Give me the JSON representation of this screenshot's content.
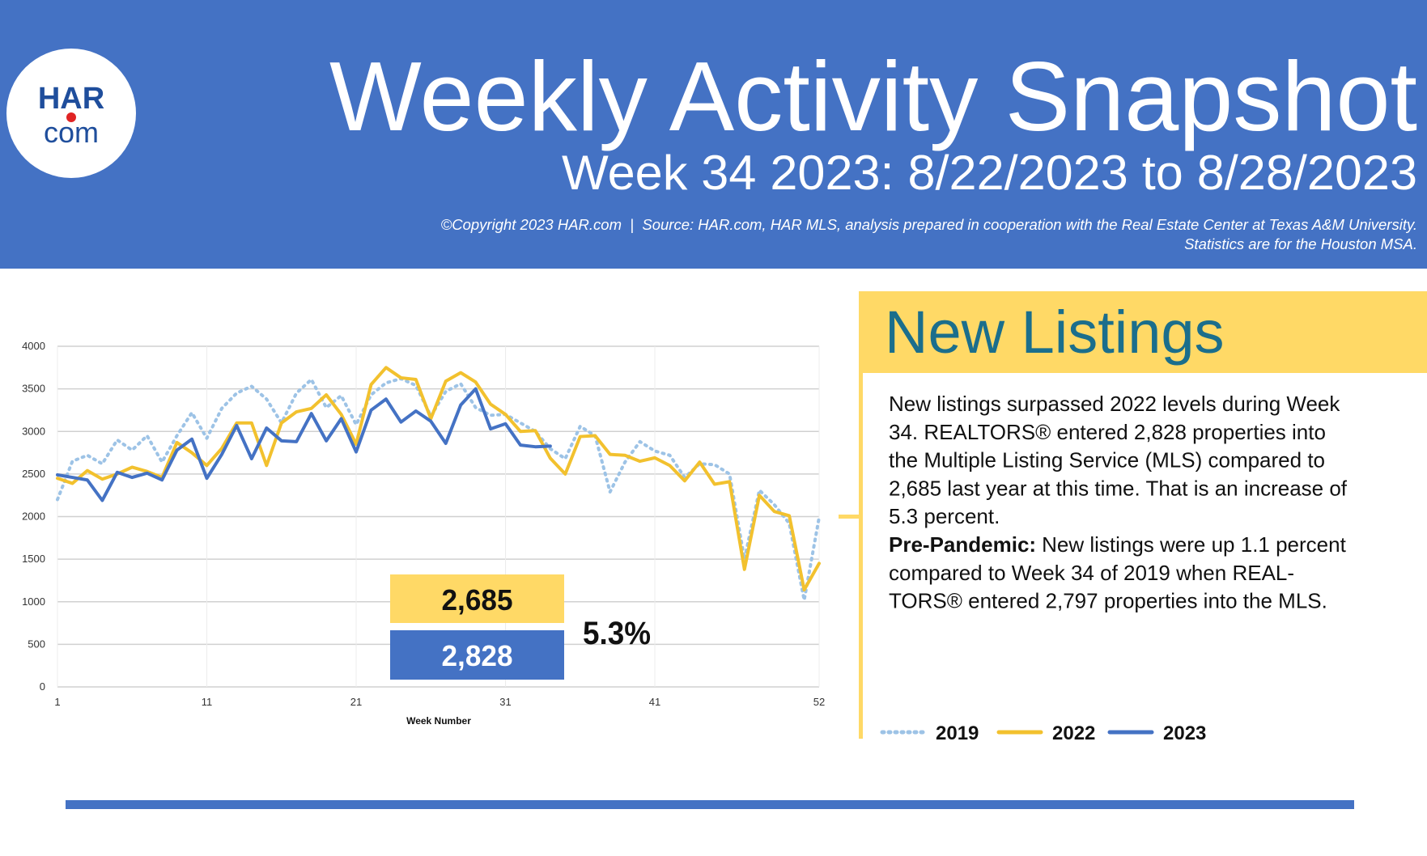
{
  "header": {
    "title": "Weekly Activity Snapshot",
    "subtitle": "Week 34 2023: 8/22/2023 to 8/28/2023",
    "source_lines": [
      "©Copyright 2023 HAR.com  |  Source: HAR.com, HAR MLS, analysis prepared in cooperation with the Real Estate Center at Texas A&M University.",
      "Statistics are for the Houston MSA."
    ],
    "logo": {
      "top": "HAR",
      "bottom": "com"
    }
  },
  "chart_data": {
    "type": "line",
    "x_label": "Week Number",
    "x": [
      1,
      2,
      3,
      4,
      5,
      6,
      7,
      8,
      9,
      10,
      11,
      12,
      13,
      14,
      15,
      16,
      17,
      18,
      19,
      20,
      21,
      22,
      23,
      24,
      25,
      26,
      27,
      28,
      29,
      30,
      31,
      32,
      33,
      34,
      35,
      36,
      37,
      38,
      39,
      40,
      41,
      42,
      43,
      44,
      45,
      46,
      47,
      48,
      49,
      50,
      51,
      52
    ],
    "xlim": [
      1,
      52
    ],
    "xticks": [
      1,
      11,
      21,
      31,
      41,
      52
    ],
    "ylim": [
      0,
      4000
    ],
    "yticks": [
      0,
      500,
      1000,
      1500,
      2000,
      2500,
      3000,
      3500,
      4000
    ],
    "grid": true,
    "series": [
      {
        "name": "2019",
        "color": "#9dc3e6",
        "dash": "dotted",
        "values": [
          2200,
          2650,
          2720,
          2620,
          2900,
          2780,
          2950,
          2640,
          2950,
          3220,
          2920,
          3270,
          3450,
          3530,
          3380,
          3100,
          3450,
          3610,
          3280,
          3420,
          3080,
          3430,
          3570,
          3620,
          3540,
          3180,
          3470,
          3560,
          3280,
          3190,
          3200,
          3100,
          3000,
          2797,
          2680,
          3060,
          2950,
          2290,
          2640,
          2880,
          2770,
          2720,
          2460,
          2620,
          2610,
          2500,
          1500,
          2310,
          2140,
          1920,
          1020,
          1990
        ]
      },
      {
        "name": "2022",
        "color": "#f2c12e",
        "dash": "solid",
        "values": [
          2450,
          2390,
          2540,
          2440,
          2500,
          2580,
          2530,
          2460,
          2870,
          2750,
          2600,
          2800,
          3100,
          3100,
          2600,
          3100,
          3230,
          3270,
          3430,
          3200,
          2850,
          3550,
          3750,
          3630,
          3610,
          3150,
          3590,
          3690,
          3580,
          3320,
          3200,
          3000,
          3010,
          2685,
          2500,
          2940,
          2950,
          2730,
          2720,
          2650,
          2690,
          2600,
          2420,
          2640,
          2380,
          2410,
          1380,
          2250,
          2060,
          2010,
          1140,
          1450
        ]
      },
      {
        "name": "2023",
        "color": "#4472c4",
        "dash": "solid",
        "values": [
          2490,
          2460,
          2430,
          2190,
          2520,
          2460,
          2510,
          2430,
          2780,
          2910,
          2450,
          2730,
          3070,
          2680,
          3040,
          2890,
          2880,
          3210,
          2890,
          3150,
          2760,
          3250,
          3380,
          3110,
          3240,
          3120,
          2860,
          3310,
          3500,
          3030,
          3090,
          2840,
          2820,
          2828,
          null,
          null,
          null,
          null,
          null,
          null,
          null,
          null,
          null,
          null,
          null,
          null,
          null,
          null,
          null,
          null,
          null,
          null
        ]
      }
    ],
    "callouts": {
      "values": [
        2685,
        2828
      ],
      "value_labels": [
        "2,685",
        "2,828"
      ],
      "change": 5.3,
      "change_label": "5.3%"
    }
  },
  "panel": {
    "heading": "New Listings",
    "paragraph_1": [
      "New listings surpassed 2022 levels during Week",
      "34. REALTORS® entered 2,828 properties into",
      "the Multiple Listing Service (MLS) compared to",
      "2,685 last year at this time. That is an increase of",
      "5.3 percent."
    ],
    "paragraph_2_lead": "Pre-Pandemic:",
    "paragraph_2": [
      "New listings were up 1.1 percent",
      "compared to Week 34 of 2019 when REAL-",
      "TORS® entered 2,797 properties into the MLS."
    ]
  }
}
